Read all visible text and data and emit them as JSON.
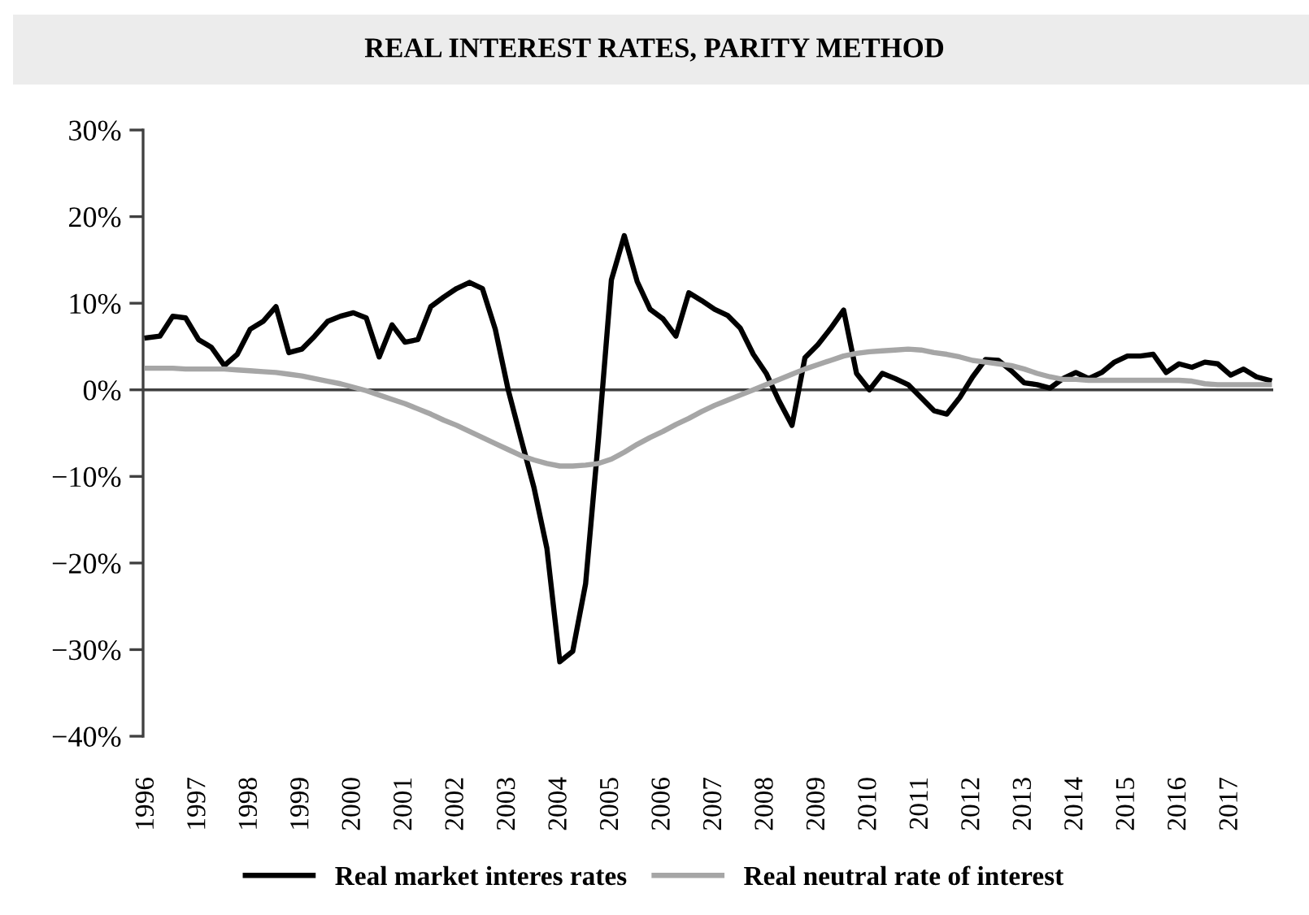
{
  "chart_data": {
    "type": "line",
    "title": "REAL INTEREST RATES, PARITY METHOD",
    "categories": [
      "1996",
      null,
      null,
      null,
      "1997",
      null,
      null,
      null,
      "1998",
      null,
      null,
      null,
      "1999",
      null,
      null,
      null,
      "2000",
      null,
      null,
      null,
      "2001",
      null,
      null,
      null,
      "2002",
      null,
      null,
      null,
      "2003",
      null,
      null,
      null,
      "2004",
      null,
      null,
      null,
      "2005",
      null,
      null,
      null,
      "2006",
      null,
      null,
      null,
      "2007",
      null,
      null,
      null,
      "2008",
      null,
      null,
      null,
      "2009",
      null,
      null,
      null,
      "2010",
      null,
      null,
      null,
      "2011",
      null,
      null,
      null,
      "2012",
      null,
      null,
      null,
      "2013",
      null,
      null,
      null,
      "2014",
      null,
      null,
      null,
      "2015",
      null,
      null,
      null,
      "2016",
      null,
      null,
      null,
      "2017",
      null,
      null,
      null
    ],
    "series": [
      {
        "name": "Real market interes rates",
        "color": "#000000",
        "values": [
          6.0,
          6.2,
          8.5,
          8.3,
          5.8,
          4.9,
          2.8,
          4.1,
          7.0,
          7.9,
          9.6,
          4.3,
          4.7,
          6.2,
          7.9,
          8.5,
          8.9,
          8.3,
          3.8,
          7.5,
          5.5,
          5.8,
          9.6,
          10.7,
          11.7,
          12.4,
          11.7,
          7.0,
          0.0,
          -5.7,
          -11.3,
          -18.3,
          -31.4,
          -30.2,
          -22.4,
          -5.6,
          12.7,
          17.8,
          12.5,
          9.3,
          8.2,
          6.2,
          11.2,
          10.3,
          9.3,
          8.6,
          7.1,
          4.1,
          1.9,
          -1.3,
          -4.1,
          3.7,
          5.2,
          7.1,
          9.2,
          1.9,
          0.0,
          1.9,
          1.3,
          0.6,
          -0.9,
          -2.4,
          -2.8,
          -0.9,
          1.5,
          3.5,
          3.4,
          2.2,
          0.8,
          0.6,
          0.2,
          1.3,
          2.0,
          1.3,
          2.0,
          3.2,
          3.9,
          3.9,
          4.1,
          2.0,
          3.0,
          2.6,
          3.2,
          3.0,
          1.7,
          2.4,
          1.5,
          1.1
        ]
      },
      {
        "name": "Real neutral rate of interest",
        "color": "#a6a6a6",
        "values": [
          2.5,
          2.5,
          2.5,
          2.4,
          2.4,
          2.4,
          2.4,
          2.3,
          2.2,
          2.1,
          2.0,
          1.8,
          1.6,
          1.3,
          1.0,
          0.7,
          0.3,
          -0.1,
          -0.6,
          -1.1,
          -1.6,
          -2.2,
          -2.8,
          -3.5,
          -4.1,
          -4.8,
          -5.5,
          -6.2,
          -6.9,
          -7.6,
          -8.1,
          -8.5,
          -8.8,
          -8.8,
          -8.7,
          -8.5,
          -8.0,
          -7.2,
          -6.3,
          -5.5,
          -4.8,
          -4.0,
          -3.3,
          -2.5,
          -1.8,
          -1.2,
          -0.6,
          0.0,
          0.6,
          1.2,
          1.8,
          2.4,
          2.9,
          3.4,
          3.9,
          4.2,
          4.4,
          4.5,
          4.6,
          4.7,
          4.6,
          4.3,
          4.1,
          3.8,
          3.4,
          3.2,
          3.0,
          2.8,
          2.4,
          1.9,
          1.5,
          1.2,
          1.2,
          1.1,
          1.1,
          1.1,
          1.1,
          1.1,
          1.1,
          1.1,
          1.1,
          1.0,
          0.7,
          0.6,
          0.6,
          0.6,
          0.6,
          0.6
        ]
      }
    ],
    "ylim": [
      -40,
      30
    ],
    "yticks": [
      {
        "value": -40,
        "label": "−40%"
      },
      {
        "value": -30,
        "label": "−30%"
      },
      {
        "value": -20,
        "label": "−20%"
      },
      {
        "value": -10,
        "label": "−10%"
      },
      {
        "value": 0,
        "label": "0%"
      },
      {
        "value": 10,
        "label": "10%"
      },
      {
        "value": 20,
        "label": "20%"
      },
      {
        "value": 30,
        "label": "30%"
      }
    ],
    "ref_lines": [
      {
        "axis": "y",
        "value": 0,
        "color": "#404040"
      }
    ],
    "grid": false,
    "legend": "bottom",
    "marker": "none",
    "line_style": "solid"
  }
}
